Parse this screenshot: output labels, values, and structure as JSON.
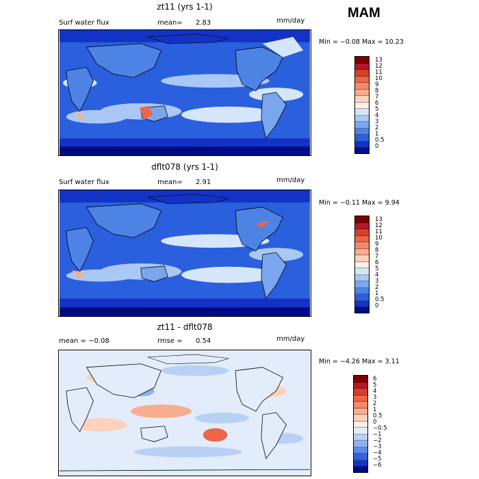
{
  "season": "MAM",
  "panels": [
    {
      "title": "zt11 (yrs 1-1)",
      "left_label": "Surf water flux",
      "mean_label": "mean=",
      "mean_value": "2.83",
      "units": "mm/day",
      "minmax": "Min =   −0.08 Max =   10.23",
      "colorbar_labels": [
        "13",
        "12",
        "11",
        "10",
        "9",
        "8",
        "7",
        "6",
        "5",
        "4",
        "3",
        "2",
        "1",
        "0.5",
        "0"
      ],
      "colors": [
        "#7f0000",
        "#b2182b",
        "#d6402b",
        "#ef6548",
        "#f4896b",
        "#f9ad8f",
        "#fcd2bc",
        "#fdf0e3",
        "#d6e6fa",
        "#a9c8f5",
        "#7aa6ee",
        "#4e83e6",
        "#2a5fde",
        "#1233c4",
        "#000c8c"
      ]
    },
    {
      "title": "dflt078 (yrs 1-1)",
      "left_label": "Surf water flux",
      "mean_label": "mean=",
      "mean_value": "2.91",
      "units": "mm/day",
      "minmax": "Min =   −0.11 Max =    9.94",
      "colorbar_labels": [
        "13",
        "12",
        "11",
        "10",
        "9",
        "8",
        "7",
        "6",
        "5",
        "4",
        "3",
        "2",
        "1",
        "0.5",
        "0"
      ],
      "colors": [
        "#7f0000",
        "#b2182b",
        "#d6402b",
        "#ef6548",
        "#f4896b",
        "#f9ad8f",
        "#fcd2bc",
        "#fdf0e3",
        "#d6e6fa",
        "#a9c8f5",
        "#7aa6ee",
        "#4e83e6",
        "#2a5fde",
        "#1233c4",
        "#000c8c"
      ]
    },
    {
      "title": "zt11 - dflt078",
      "left_label": "mean =   −0.08",
      "mean_label": "rmse =",
      "mean_value": "0.54",
      "units": "mm/day",
      "minmax": "Min =   −4.26 Max =    3.11",
      "colorbar_labels": [
        "6",
        "5",
        "4",
        "3",
        "2",
        "1",
        "0.5",
        "0",
        "−0.5",
        "−1",
        "−2",
        "−3",
        "−4",
        "−5",
        "−6"
      ],
      "colors": [
        "#7f0000",
        "#b2182b",
        "#d6402b",
        "#ef6548",
        "#f4896b",
        "#f9ad8f",
        "#fcd2bc",
        "#fdeee3",
        "#e3ecfb",
        "#b9d0f5",
        "#8fb0ee",
        "#5f8ae6",
        "#3461dc",
        "#1535c0",
        "#000a86"
      ]
    }
  ]
}
